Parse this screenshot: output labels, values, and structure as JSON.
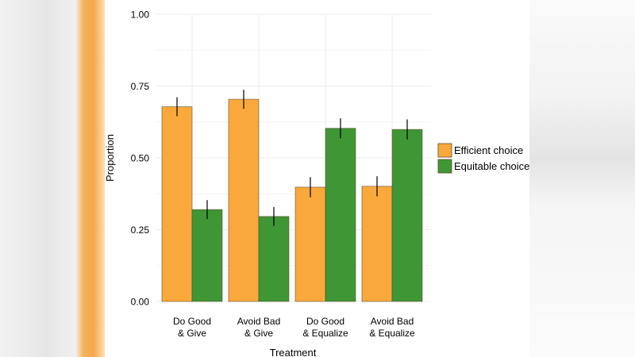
{
  "chart_data": {
    "type": "bar",
    "xlabel": "Treatment",
    "ylabel": "Proportion",
    "ylim": [
      0,
      1
    ],
    "yticks": [
      "0.00",
      "0.25",
      "0.50",
      "0.75",
      "1.00"
    ],
    "categories": [
      [
        "Do Good",
        "& Give"
      ],
      [
        "Avoid Bad",
        "& Give"
      ],
      [
        "Do Good",
        "& Equalize"
      ],
      [
        "Avoid Bad",
        "& Equalize"
      ]
    ],
    "series": [
      {
        "name": "Efficient choice",
        "color": "#f9a93b",
        "values": [
          0.678,
          0.704,
          0.398,
          0.401
        ],
        "error": [
          0.033,
          0.033,
          0.035,
          0.035
        ]
      },
      {
        "name": "Equitable choice",
        "color": "#3f9635",
        "values": [
          0.32,
          0.296,
          0.603,
          0.599
        ],
        "error": [
          0.033,
          0.033,
          0.035,
          0.035
        ]
      }
    ],
    "grid": true,
    "legend": "right"
  }
}
